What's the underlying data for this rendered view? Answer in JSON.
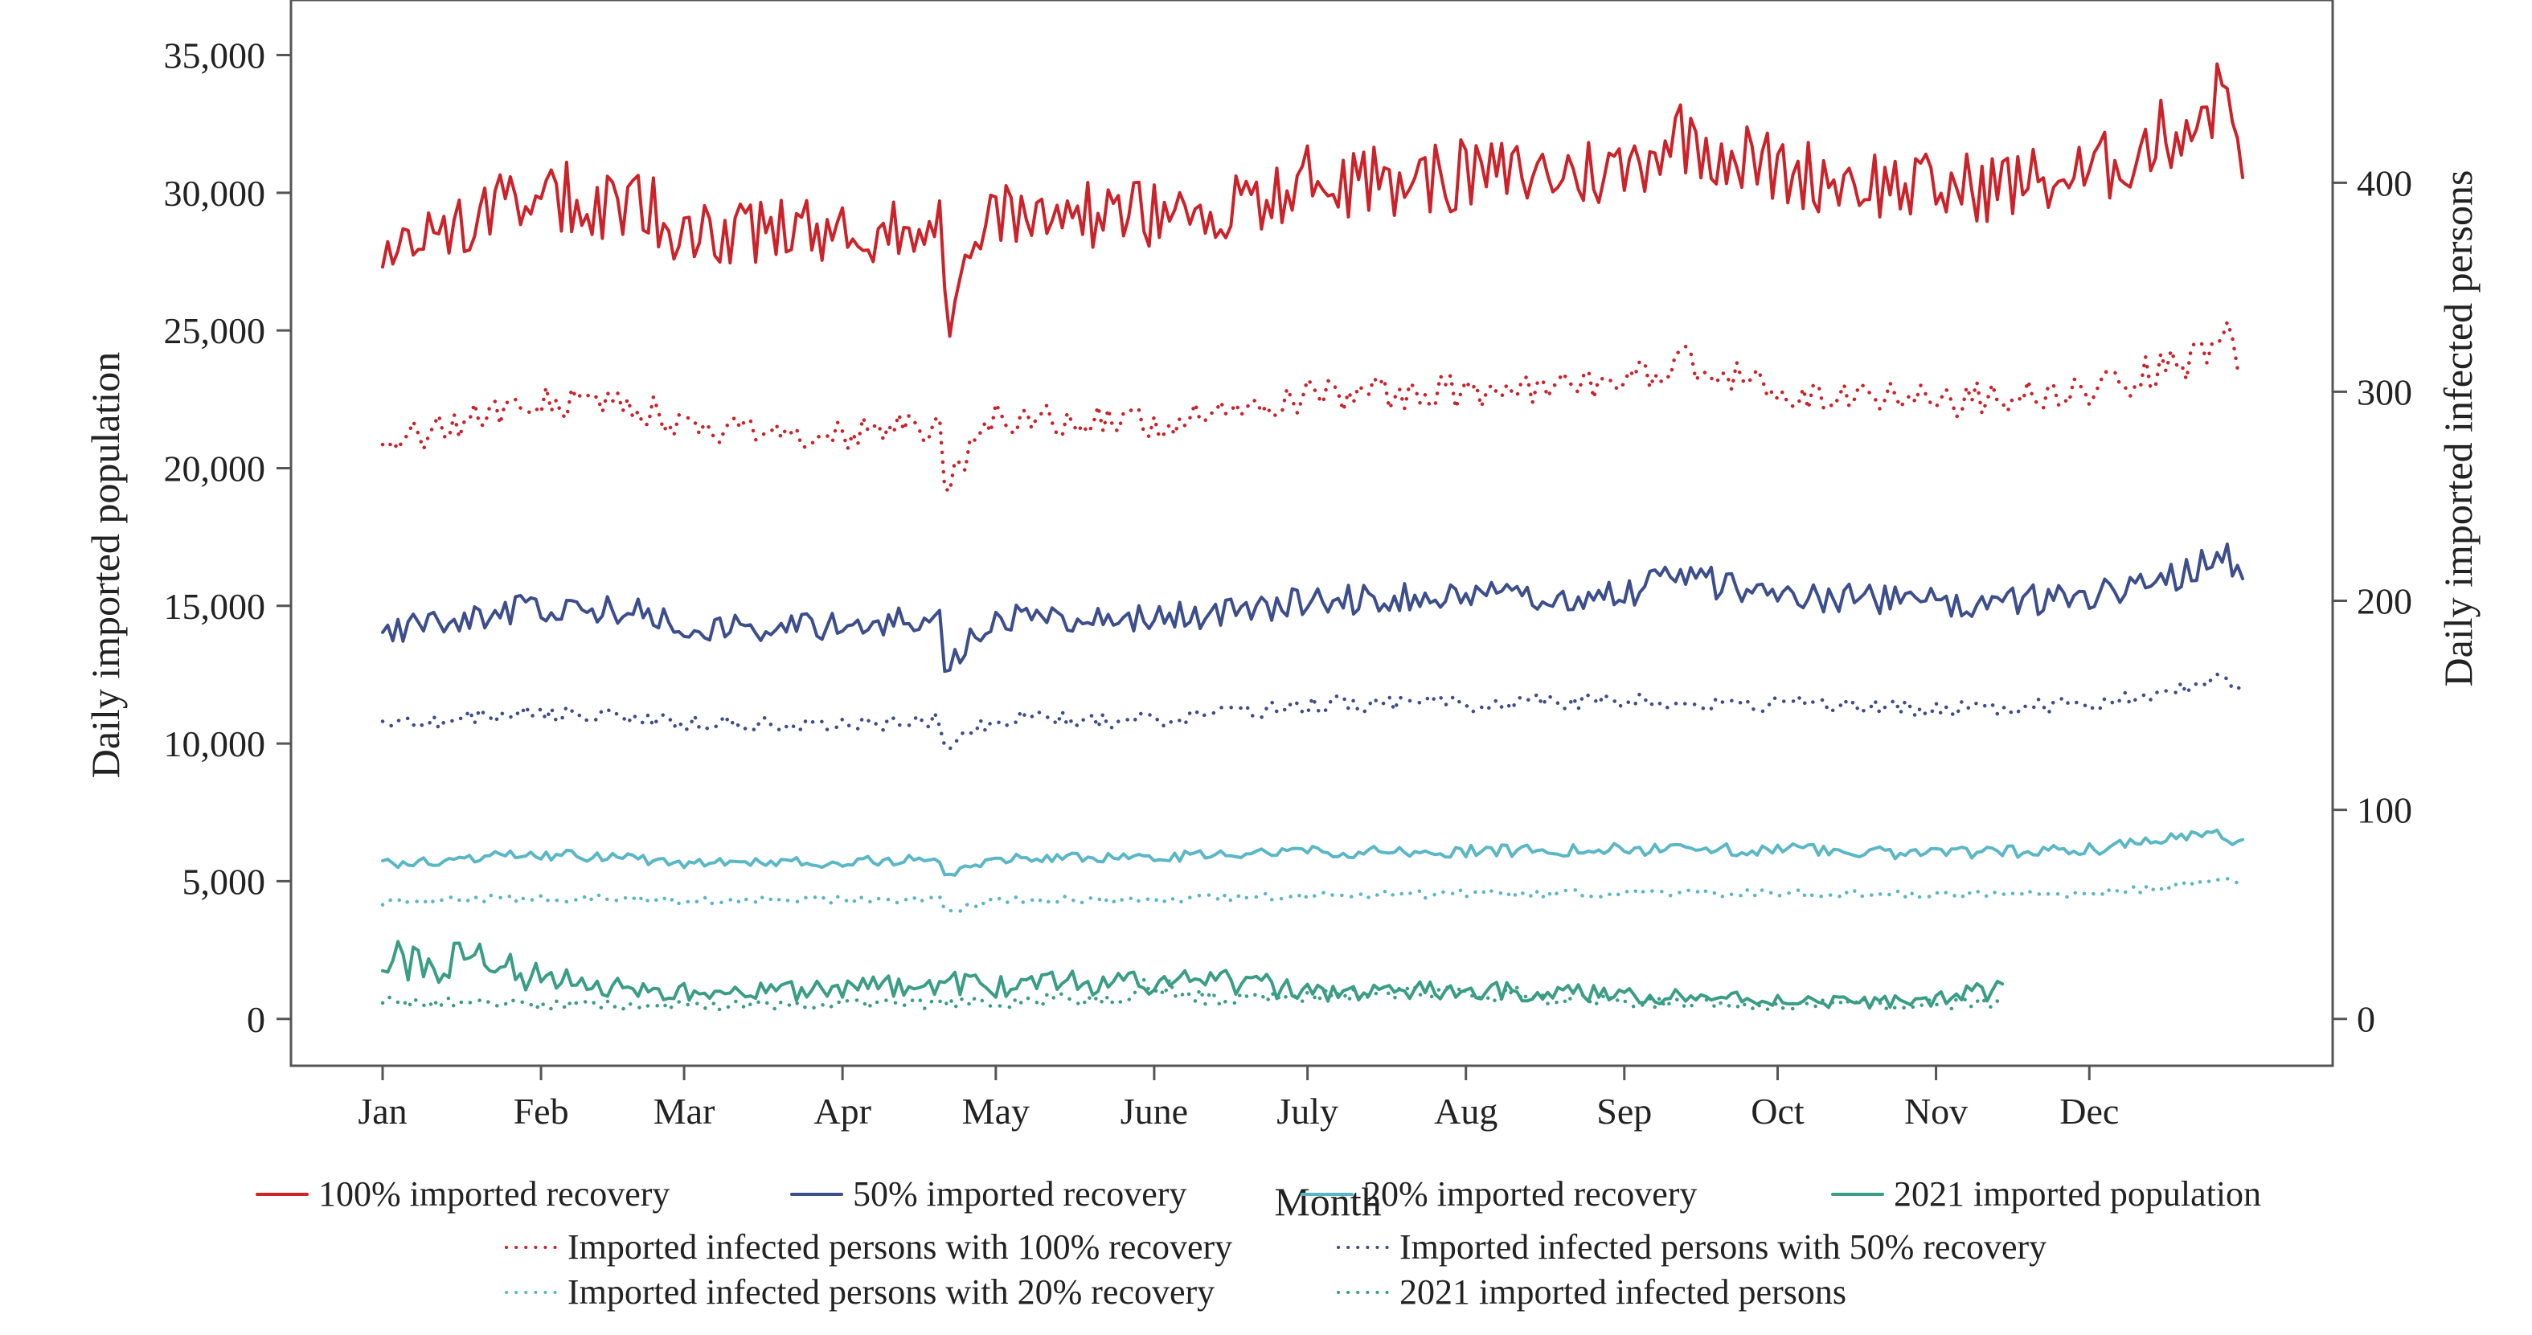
{
  "chart_data": {
    "type": "line",
    "xlabel": "Month",
    "ylabel_left": "Daily imported population",
    "ylabel_right": "Daily imported infected persons",
    "x_ticks": [
      "Jan",
      "Feb",
      "Mar",
      "Apr",
      "May",
      "June",
      "July",
      "Aug",
      "Sep",
      "Oct",
      "Nov",
      "Dec"
    ],
    "x_tick_days": [
      1,
      32,
      60,
      91,
      121,
      152,
      182,
      213,
      244,
      274,
      305,
      335
    ],
    "x_domain_days": [
      1,
      365
    ],
    "ylim_left": [
      -1700,
      37000
    ],
    "ylim_right": [
      -22.4,
      487.4
    ],
    "y_ticks_left": [
      {
        "value": 0,
        "label": "0"
      },
      {
        "value": 5000,
        "label": "5,000"
      },
      {
        "value": 10000,
        "label": "10,000"
      },
      {
        "value": 15000,
        "label": "15,000"
      },
      {
        "value": 20000,
        "label": "20,000"
      },
      {
        "value": 25000,
        "label": "25,000"
      },
      {
        "value": 30000,
        "label": "30,000"
      },
      {
        "value": 35000,
        "label": "35,000"
      }
    ],
    "y_ticks_right": [
      {
        "value": 0,
        "label": "0"
      },
      {
        "value": 100,
        "label": "100"
      },
      {
        "value": 200,
        "label": "200"
      },
      {
        "value": 300,
        "label": "300"
      },
      {
        "value": 400,
        "label": "400"
      }
    ],
    "legend_placement": "bottom",
    "series": [
      {
        "name": "100% imported recovery",
        "axis": "left",
        "style": "solid",
        "color": "#cc2229",
        "points": [
          [
            1,
            28000
          ],
          [
            31,
            30000
          ],
          [
            55,
            29300
          ],
          [
            60,
            28400
          ],
          [
            91,
            28600
          ],
          [
            110,
            29000
          ],
          [
            111,
            25500
          ],
          [
            121,
            29200
          ],
          [
            152,
            29200
          ],
          [
            170,
            29600
          ],
          [
            182,
            30400
          ],
          [
            213,
            30600
          ],
          [
            244,
            30800
          ],
          [
            254,
            32200
          ],
          [
            274,
            30800
          ],
          [
            305,
            30100
          ],
          [
            335,
            30600
          ],
          [
            355,
            32600
          ],
          [
            362,
            33800
          ],
          [
            365,
            31800
          ]
        ]
      },
      {
        "name": "50% imported recovery",
        "axis": "left",
        "style": "solid",
        "color": "#3c4e8c",
        "points": [
          [
            1,
            14000
          ],
          [
            31,
            15000
          ],
          [
            55,
            14700
          ],
          [
            60,
            14200
          ],
          [
            91,
            14300
          ],
          [
            110,
            14500
          ],
          [
            111,
            12800
          ],
          [
            121,
            14600
          ],
          [
            152,
            14600
          ],
          [
            170,
            14800
          ],
          [
            182,
            15200
          ],
          [
            213,
            15300
          ],
          [
            244,
            15400
          ],
          [
            254,
            16100
          ],
          [
            274,
            15400
          ],
          [
            305,
            15100
          ],
          [
            335,
            15300
          ],
          [
            355,
            16300
          ],
          [
            362,
            16900
          ],
          [
            365,
            15900
          ]
        ]
      },
      {
        "name": "20% imported recovery",
        "axis": "left",
        "style": "solid",
        "color": "#5ab7c5",
        "points": [
          [
            1,
            5600
          ],
          [
            31,
            6000
          ],
          [
            60,
            5700
          ],
          [
            91,
            5700
          ],
          [
            110,
            5800
          ],
          [
            111,
            5200
          ],
          [
            121,
            5800
          ],
          [
            152,
            5850
          ],
          [
            182,
            6050
          ],
          [
            213,
            6100
          ],
          [
            244,
            6150
          ],
          [
            274,
            6150
          ],
          [
            305,
            6000
          ],
          [
            335,
            6150
          ],
          [
            360,
            6700
          ],
          [
            365,
            6400
          ]
        ]
      },
      {
        "name": "2021 imported population",
        "axis": "left",
        "style": "solid",
        "color": "#3a9d85",
        "points": [
          [
            1,
            2300
          ],
          [
            10,
            2000
          ],
          [
            20,
            2100
          ],
          [
            31,
            1500
          ],
          [
            45,
            1200
          ],
          [
            60,
            1000
          ],
          [
            80,
            1000
          ],
          [
            91,
            1100
          ],
          [
            110,
            1300
          ],
          [
            121,
            1200
          ],
          [
            140,
            1300
          ],
          [
            152,
            1300
          ],
          [
            170,
            1300
          ],
          [
            182,
            1000
          ],
          [
            200,
            1000
          ],
          [
            213,
            1000
          ],
          [
            244,
            900
          ],
          [
            274,
            700
          ],
          [
            290,
            600
          ],
          [
            305,
            700
          ],
          [
            318,
            1100
          ]
        ]
      },
      {
        "name": "Imported infected persons with 100% recovery",
        "axis": "right",
        "style": "dotted",
        "color": "#cc2229",
        "points": [
          [
            1,
            275
          ],
          [
            31,
            295
          ],
          [
            55,
            290
          ],
          [
            60,
            280
          ],
          [
            91,
            280
          ],
          [
            110,
            283
          ],
          [
            111,
            253
          ],
          [
            121,
            288
          ],
          [
            152,
            285
          ],
          [
            170,
            290
          ],
          [
            182,
            298
          ],
          [
            213,
            300
          ],
          [
            244,
            303
          ],
          [
            254,
            315
          ],
          [
            274,
            300
          ],
          [
            305,
            295
          ],
          [
            335,
            300
          ],
          [
            355,
            315
          ],
          [
            362,
            325
          ],
          [
            365,
            312
          ]
        ]
      },
      {
        "name": "Imported infected persons with 50% recovery",
        "axis": "right",
        "style": "dotted",
        "color": "#3c4e8c",
        "points": [
          [
            1,
            140
          ],
          [
            31,
            147
          ],
          [
            60,
            142
          ],
          [
            91,
            141
          ],
          [
            110,
            143
          ],
          [
            111,
            128
          ],
          [
            121,
            144
          ],
          [
            152,
            143
          ],
          [
            182,
            150
          ],
          [
            213,
            151
          ],
          [
            244,
            152
          ],
          [
            274,
            151
          ],
          [
            305,
            148
          ],
          [
            335,
            150
          ],
          [
            362,
            163
          ],
          [
            365,
            157
          ]
        ]
      },
      {
        "name": "Imported infected persons with 20% recovery",
        "axis": "right",
        "style": "dotted",
        "color": "#5ab7c5",
        "points": [
          [
            1,
            56
          ],
          [
            31,
            58
          ],
          [
            60,
            57
          ],
          [
            91,
            57
          ],
          [
            110,
            57
          ],
          [
            111,
            51
          ],
          [
            121,
            57
          ],
          [
            152,
            57
          ],
          [
            182,
            59
          ],
          [
            213,
            60
          ],
          [
            244,
            60
          ],
          [
            274,
            60
          ],
          [
            305,
            59
          ],
          [
            335,
            60
          ],
          [
            362,
            66
          ],
          [
            365,
            64
          ]
        ]
      },
      {
        "name": "2021 imported infected persons",
        "axis": "right",
        "style": "dotted",
        "color": "#3a9d85",
        "points": [
          [
            1,
            8
          ],
          [
            31,
            7
          ],
          [
            60,
            6
          ],
          [
            91,
            7
          ],
          [
            121,
            8
          ],
          [
            145,
            10
          ],
          [
            150,
            20
          ],
          [
            155,
            14
          ],
          [
            165,
            9
          ],
          [
            182,
            10
          ],
          [
            200,
            13
          ],
          [
            213,
            12
          ],
          [
            235,
            10
          ],
          [
            244,
            8
          ],
          [
            274,
            7
          ],
          [
            305,
            7
          ],
          [
            318,
            9
          ]
        ]
      }
    ]
  }
}
